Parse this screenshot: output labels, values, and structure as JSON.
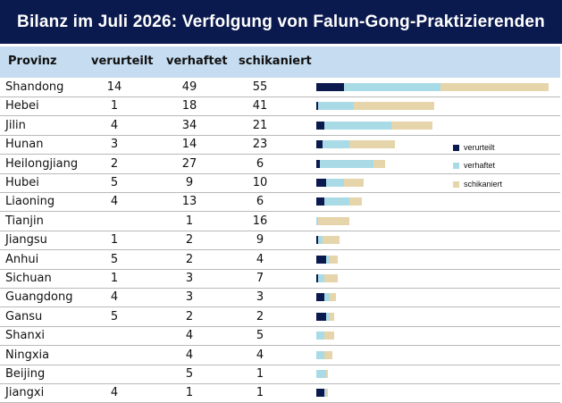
{
  "title": "Bilanz im Juli 2026: Verfolgung von Falun-Gong-Praktizierenden",
  "headers": {
    "province": "Provinz",
    "sentenced": "verurteilt",
    "arrested": "verhaftet",
    "harassed": "schikaniert"
  },
  "colors": {
    "sentenced": "#0b1a4e",
    "arrested": "#a9dbe6",
    "harassed": "#e6d5aa",
    "title_bg": "#0b1a4e",
    "header_bg": "#c6dcf0"
  },
  "chart_data": {
    "type": "bar",
    "orientation": "horizontal",
    "stacked": true,
    "categories": [
      "Shandong",
      "Hebei",
      "Jilin",
      "Hunan",
      "Heilongjiang",
      "Hubei",
      "Liaoning",
      "Tianjin",
      "Jiangsu",
      "Anhui",
      "Sichuan",
      "Guangdong",
      "Gansu",
      "Shanxi",
      "Ningxia",
      "Beijing",
      "Jiangxi"
    ],
    "series": [
      {
        "name": "verurteilt",
        "values": [
          14,
          1,
          4,
          3,
          2,
          5,
          4,
          null,
          1,
          5,
          1,
          4,
          5,
          null,
          null,
          null,
          4
        ]
      },
      {
        "name": "verhaftet",
        "values": [
          49,
          18,
          34,
          14,
          27,
          9,
          13,
          1,
          2,
          2,
          3,
          3,
          2,
          4,
          4,
          5,
          1
        ]
      },
      {
        "name": "schikaniert",
        "values": [
          55,
          41,
          21,
          23,
          6,
          10,
          6,
          16,
          9,
          4,
          7,
          3,
          2,
          5,
          4,
          1,
          1
        ]
      }
    ],
    "legend_position": "right"
  }
}
